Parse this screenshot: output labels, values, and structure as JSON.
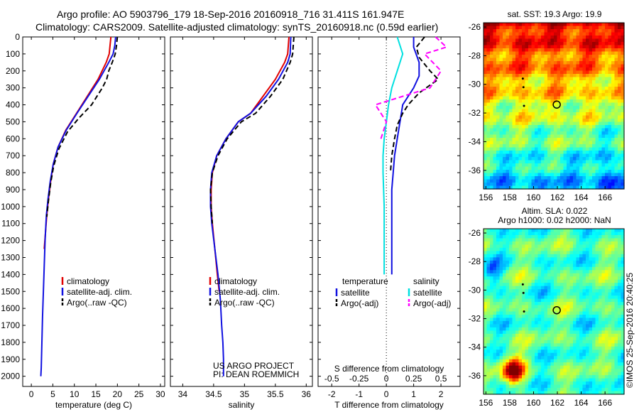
{
  "header": {
    "line1": "Argo profile: AO 5903796_179 18-Sep-2016 20160918_716 31.411S 161.947E",
    "line2": "Climatology: CARS2009. Satellite-adjusted climatology: synTS_20160918.nc (0.59d earlier)"
  },
  "colors": {
    "climatology": "#e00000",
    "satellite": "#1010e0",
    "argo": "#000000",
    "salinity_satellite": "#00e0e0",
    "salinity_argo": "#ff00ff"
  },
  "chart_data": [
    {
      "type": "line",
      "panel": "temperature",
      "xlabel": "temperature (deg C)",
      "xlim": [
        -2,
        31
      ],
      "xticks": [
        0,
        5,
        10,
        15,
        20,
        25,
        30
      ],
      "ylim": [
        2060,
        0
      ],
      "yticks": [
        0,
        100,
        200,
        300,
        400,
        500,
        600,
        700,
        800,
        900,
        1000,
        1100,
        1200,
        1300,
        1400,
        1500,
        1600,
        1700,
        1800,
        1900,
        2000
      ],
      "legend": [
        "climatology",
        "satellite-adj. clim.",
        "Argo(..raw -QC)"
      ],
      "legend_placement": "bottom-center",
      "series": [
        {
          "name": "climatology",
          "color_key": "climatology",
          "dash": false,
          "x": [
            18.5,
            18.3,
            18.1,
            17.4,
            15.5,
            13.0,
            10.5,
            8.0,
            6.2,
            5.1,
            4.5,
            4.0,
            3.6,
            3.3,
            3.0
          ],
          "y": [
            0,
            50,
            100,
            150,
            250,
            350,
            450,
            550,
            650,
            750,
            850,
            950,
            1050,
            1150,
            1250
          ]
        },
        {
          "name": "satellite-adj. clim.",
          "color_key": "satellite",
          "dash": false,
          "x": [
            19.6,
            19.4,
            19.0,
            18.0,
            15.8,
            13.2,
            10.6,
            8.1,
            6.2,
            5.1,
            4.4,
            3.9,
            3.5,
            3.2,
            3.0,
            2.8,
            2.6,
            2.5,
            2.4,
            2.3,
            2.2
          ],
          "y": [
            0,
            50,
            100,
            150,
            250,
            350,
            450,
            550,
            650,
            750,
            850,
            950,
            1050,
            1200,
            1350,
            1500,
            1650,
            1750,
            1850,
            1950,
            2000
          ]
        },
        {
          "name": "Argo(..raw -QC)",
          "color_key": "argo",
          "dash": true,
          "x": [
            20.0,
            19.8,
            19.5,
            18.8,
            18.0,
            17.5,
            16.5,
            14.0,
            11.0,
            8.4,
            6.4,
            5.2,
            4.5,
            4.0,
            3.6
          ],
          "y": [
            0,
            50,
            100,
            150,
            200,
            250,
            300,
            400,
            480,
            560,
            660,
            760,
            860,
            960,
            1060
          ]
        }
      ]
    },
    {
      "type": "line",
      "panel": "salinity",
      "xlabel": "salinity",
      "xlim": [
        33.8,
        36.1
      ],
      "xticks": [
        34,
        34.5,
        35,
        35.5,
        36
      ],
      "ylim": [
        2060,
        0
      ],
      "legend": [
        "climatology",
        "satellite-adj. clim.",
        "Argo(..raw -QC)"
      ],
      "legend_placement": "bottom-center",
      "annotation": [
        "US ARGO PROJECT",
        "PI: DEAN ROEMMICH"
      ],
      "series": [
        {
          "name": "climatology",
          "color_key": "climatology",
          "dash": false,
          "x": [
            35.72,
            35.7,
            35.65,
            35.5,
            35.3,
            35.1,
            34.9,
            34.7,
            34.55,
            34.48,
            34.46,
            34.46,
            34.48,
            34.52,
            34.56,
            34.59
          ],
          "y": [
            0,
            100,
            150,
            250,
            350,
            450,
            500,
            600,
            700,
            800,
            900,
            1000,
            1100,
            1250,
            1400,
            1500
          ]
        },
        {
          "name": "satellite-adj. clim.",
          "color_key": "satellite",
          "dash": false,
          "x": [
            35.75,
            35.74,
            35.7,
            35.55,
            35.35,
            35.1,
            34.9,
            34.7,
            34.55,
            34.47,
            34.45,
            34.45,
            34.47,
            34.52,
            34.57,
            34.61,
            34.63,
            34.65,
            34.66,
            34.66
          ],
          "y": [
            0,
            100,
            150,
            250,
            350,
            450,
            500,
            600,
            700,
            800,
            900,
            1000,
            1100,
            1250,
            1400,
            1550,
            1700,
            1800,
            1900,
            2000
          ]
        },
        {
          "name": "Argo(..raw -QC)",
          "color_key": "argo",
          "dash": true,
          "x": [
            35.8,
            35.78,
            35.74,
            35.62,
            35.42,
            35.18,
            34.95,
            34.72,
            34.57,
            34.48,
            34.45,
            34.46,
            34.48
          ],
          "y": [
            0,
            100,
            150,
            250,
            350,
            450,
            500,
            600,
            700,
            800,
            900,
            1000,
            1100
          ]
        }
      ]
    },
    {
      "type": "line",
      "panel": "difference",
      "xlabel": "T difference from climatology",
      "xlabel_top": "S difference from climatology",
      "xlim": [
        -2.5,
        2.7
      ],
      "xticks": [
        -2,
        -1,
        0,
        1,
        2
      ],
      "xticks_top_values": [
        -0.5,
        -0.25,
        0,
        0.25,
        0.5
      ],
      "legend_temperature_title": "temperature",
      "legend_salinity_title": "salinity",
      "ylim": [
        2060,
        0
      ],
      "series": [
        {
          "name": "satellite",
          "group": "temperature",
          "color_key": "satellite",
          "dash": false,
          "x": [
            1.0,
            1.0,
            1.2,
            1.2,
            1.0,
            0.6,
            0.5,
            0.4,
            0.3,
            0.25,
            0.2,
            0.2,
            0.2,
            0.2,
            0.2
          ],
          "y": [
            0,
            60,
            150,
            230,
            300,
            400,
            500,
            600,
            700,
            800,
            900,
            1000,
            1100,
            1200,
            1400
          ]
        },
        {
          "name": "Argo(-adj)",
          "group": "temperature",
          "color_key": "argo",
          "dash": true,
          "x": [
            1.4,
            1.1,
            1.2,
            1.6,
            1.9,
            1.2,
            0.8,
            0.6,
            0.4,
            0.3,
            0.2,
            0.15
          ],
          "y": [
            0,
            60,
            120,
            200,
            250,
            330,
            400,
            450,
            520,
            600,
            700,
            800
          ]
        },
        {
          "name": "satellite",
          "group": "salinity",
          "color_key": "salinity_satellite",
          "dash": false,
          "x": [
            0.1,
            0.15,
            0.1,
            0.05,
            0.02,
            0.0,
            -0.02,
            -0.03,
            -0.03,
            -0.02,
            -0.02,
            -0.02,
            -0.02
          ],
          "y": [
            0,
            100,
            200,
            300,
            400,
            500,
            600,
            700,
            800,
            1000,
            1200,
            1300,
            1400
          ]
        },
        {
          "name": "Argo(-adj)",
          "group": "salinity",
          "color_key": "salinity_argo",
          "dash": true,
          "x": [
            0.45,
            0.55,
            0.35,
            0.5,
            0.4,
            -0.1,
            0.0,
            -0.05
          ],
          "y": [
            0,
            60,
            100,
            200,
            300,
            400,
            500,
            600
          ]
        }
      ]
    },
    {
      "type": "heatmap",
      "panel": "sst_map",
      "title": "sat. SST: 19.3 Argo: 19.9",
      "xticks": [
        156,
        158,
        160,
        162,
        164,
        166
      ],
      "yticks": [
        -26,
        -28,
        -30,
        -32,
        -34,
        -36
      ],
      "xlim": [
        155.8,
        167.6
      ],
      "ylim": [
        -37.3,
        -25.7
      ],
      "marker": {
        "lon": 161.947,
        "lat": -31.411
      },
      "track": [
        [
          159.1,
          -29.6
        ],
        [
          159.15,
          -30.2
        ],
        [
          159.2,
          -31.5
        ]
      ]
    },
    {
      "type": "heatmap",
      "panel": "sla_map",
      "title": [
        "Altim. SLA: 0.022",
        "Argo h1000: 0.02 h2000: NaN"
      ],
      "xticks": [
        156,
        158,
        160,
        162,
        164,
        166
      ],
      "yticks": [
        -26,
        -28,
        -30,
        -32,
        -34,
        -36
      ],
      "xlim": [
        155.8,
        167.6
      ],
      "ylim": [
        -37.3,
        -25.7
      ],
      "marker": {
        "lon": 161.947,
        "lat": -31.411
      },
      "track": [
        [
          159.1,
          -29.6
        ],
        [
          159.15,
          -30.2
        ],
        [
          159.2,
          -31.5
        ]
      ]
    }
  ],
  "credit": "©IMOS 25-Sep-2016 20:40:25"
}
